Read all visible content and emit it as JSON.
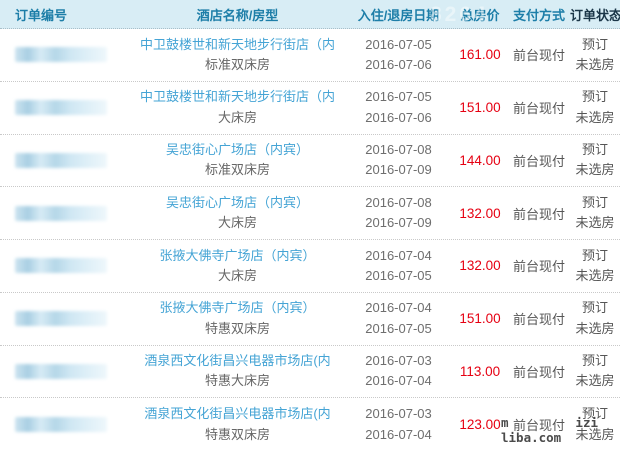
{
  "table": {
    "columns": [
      {
        "label": "订单编号"
      },
      {
        "label": "酒店名称/房型"
      },
      {
        "label": "入住/退房日期"
      },
      {
        "label": "总房价"
      },
      {
        "label": "支付方式"
      },
      {
        "label": "订单状态"
      }
    ],
    "rows": [
      {
        "order_no": "（已打码）",
        "hotel": "中卫鼓楼世和新天地步行街店（内",
        "room": "标准双床房",
        "checkin": "2016-07-05",
        "checkout": "2016-07-06",
        "price": "161.00",
        "payment": "前台现付",
        "status1": "预订",
        "status2": "未选房"
      },
      {
        "order_no": "（已打码）",
        "hotel": "中卫鼓楼世和新天地步行街店（内",
        "room": "大床房",
        "checkin": "2016-07-05",
        "checkout": "2016-07-06",
        "price": "151.00",
        "payment": "前台现付",
        "status1": "预订",
        "status2": "未选房"
      },
      {
        "order_no": "（已打码）",
        "hotel": "吴忠街心广场店（内宾）",
        "room": "标准双床房",
        "checkin": "2016-07-08",
        "checkout": "2016-07-09",
        "price": "144.00",
        "payment": "前台现付",
        "status1": "预订",
        "status2": "未选房"
      },
      {
        "order_no": "（已打码）",
        "hotel": "吴忠街心广场店（内宾）",
        "room": "大床房",
        "checkin": "2016-07-08",
        "checkout": "2016-07-09",
        "price": "132.00",
        "payment": "前台现付",
        "status1": "预订",
        "status2": "未选房"
      },
      {
        "order_no": "（已打码）",
        "hotel": "张掖大佛寺广场店（内宾）",
        "room": "大床房",
        "checkin": "2016-07-04",
        "checkout": "2016-07-05",
        "price": "132.00",
        "payment": "前台现付",
        "status1": "预订",
        "status2": "未选房"
      },
      {
        "order_no": "（已打码）",
        "hotel": "张掖大佛寺广场店（内宾）",
        "room": "特惠双床房",
        "checkin": "2016-07-04",
        "checkout": "2016-07-05",
        "price": "151.00",
        "payment": "前台现付",
        "status1": "预订",
        "status2": "未选房"
      },
      {
        "order_no": "（已打码）",
        "hotel": "酒泉西文化街昌兴电器市场店(内",
        "room": "特惠大床房",
        "checkin": "2016-07-03",
        "checkout": "2016-07-04",
        "price": "113.00",
        "payment": "前台现付",
        "status1": "预订",
        "status2": "未选房"
      },
      {
        "order_no": "（已打码）",
        "hotel": "酒泉西文化街昌兴电器市场店(内",
        "room": "特惠双床房",
        "checkin": "2016-07-03",
        "checkout": "2016-07-04",
        "price": "123.00",
        "payment": "前台现付",
        "status1": "预订",
        "status2": "未选房"
      }
    ]
  },
  "watermarks": {
    "header_faint": "8264",
    "footer_line1_left": "m",
    "footer_line1_right": "izi",
    "footer_line2": "liba.com"
  },
  "colors": {
    "header_bg": "#d8edf5",
    "header_text": "#1d7ea8",
    "hotel_link": "#45a4d5",
    "price_red": "#e60012",
    "muted_text": "#666666"
  }
}
